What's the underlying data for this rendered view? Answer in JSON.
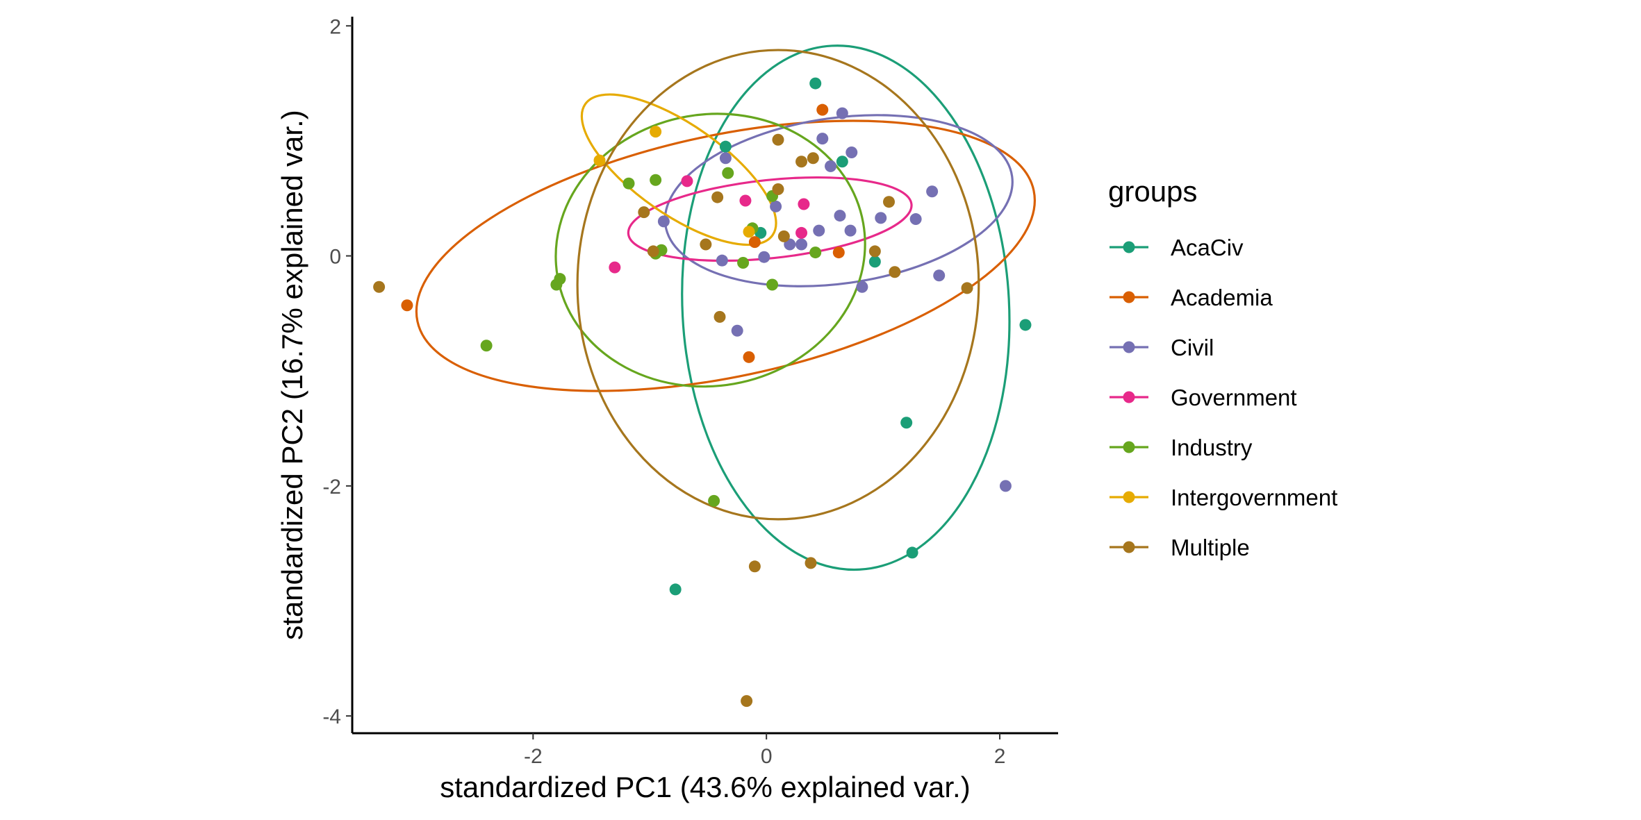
{
  "chart_data": {
    "type": "scatter",
    "xlabel": "standardized PC1 (43.6% explained var.)",
    "ylabel": "standardized PC2 (16.7% explained var.)",
    "xlim": [
      -3.55,
      2.5
    ],
    "ylim": [
      -4.15,
      2.08
    ],
    "xticks": [
      -2,
      0,
      2
    ],
    "yticks": [
      2,
      0,
      -2,
      -4
    ],
    "grid": false,
    "legend": {
      "title": "groups",
      "position": "right"
    },
    "series": [
      {
        "name": "AcaCiv",
        "color": "#1b9e77",
        "points": [
          [
            -0.78,
            -2.9
          ],
          [
            -0.35,
            0.95
          ],
          [
            0.42,
            1.5
          ],
          [
            0.65,
            0.82
          ],
          [
            0.93,
            -0.05
          ],
          [
            1.2,
            -1.45
          ],
          [
            1.25,
            -2.58
          ],
          [
            2.22,
            -0.6
          ],
          [
            -0.05,
            0.2
          ]
        ],
        "ellipse": {
          "cx": 0.68,
          "cy": -0.45,
          "rx": 1.4,
          "ry": 2.28,
          "angle": 3
        }
      },
      {
        "name": "Academia",
        "color": "#d95f02",
        "points": [
          [
            -3.08,
            -0.43
          ],
          [
            -0.15,
            -0.88
          ],
          [
            -0.1,
            0.12
          ],
          [
            0.48,
            1.27
          ],
          [
            0.62,
            0.03
          ]
        ],
        "ellipse": {
          "cx": -0.35,
          "cy": 0.0,
          "rx": 2.7,
          "ry": 1.05,
          "angle": 12
        }
      },
      {
        "name": "Civil",
        "color": "#7570b3",
        "points": [
          [
            -0.88,
            0.3
          ],
          [
            -0.35,
            0.85
          ],
          [
            -0.38,
            -0.04
          ],
          [
            -0.25,
            -0.65
          ],
          [
            -0.02,
            -0.01
          ],
          [
            0.08,
            0.43
          ],
          [
            0.2,
            0.1
          ],
          [
            0.3,
            0.1
          ],
          [
            0.45,
            0.22
          ],
          [
            0.48,
            1.02
          ],
          [
            0.55,
            0.78
          ],
          [
            0.63,
            0.35
          ],
          [
            0.65,
            1.24
          ],
          [
            0.72,
            0.22
          ],
          [
            0.73,
            0.9
          ],
          [
            0.82,
            -0.27
          ],
          [
            0.98,
            0.33
          ],
          [
            1.28,
            0.32
          ],
          [
            1.42,
            0.56
          ],
          [
            1.48,
            -0.17
          ],
          [
            2.05,
            -2.0
          ]
        ],
        "ellipse": {
          "cx": 0.62,
          "cy": 0.48,
          "rx": 1.5,
          "ry": 0.72,
          "angle": 8
        }
      },
      {
        "name": "Government",
        "color": "#e7298a",
        "points": [
          [
            -1.3,
            -0.1
          ],
          [
            -0.68,
            0.65
          ],
          [
            -0.18,
            0.48
          ],
          [
            0.3,
            0.2
          ],
          [
            0.32,
            0.45
          ]
        ],
        "ellipse": {
          "cx": 0.03,
          "cy": 0.32,
          "rx": 1.22,
          "ry": 0.34,
          "angle": 6
        }
      },
      {
        "name": "Industry",
        "color": "#66a61e",
        "points": [
          [
            -2.4,
            -0.78
          ],
          [
            -1.8,
            -0.25
          ],
          [
            -1.77,
            -0.2
          ],
          [
            -1.18,
            0.63
          ],
          [
            -0.95,
            0.66
          ],
          [
            -0.95,
            0.02
          ],
          [
            -0.9,
            0.05
          ],
          [
            -0.33,
            0.72
          ],
          [
            -0.2,
            -0.06
          ],
          [
            -0.12,
            0.24
          ],
          [
            0.05,
            -0.25
          ],
          [
            0.05,
            0.52
          ],
          [
            0.42,
            0.03
          ],
          [
            -0.45,
            -2.13
          ]
        ],
        "ellipse": {
          "cx": -0.48,
          "cy": 0.05,
          "rx": 1.33,
          "ry": 1.18,
          "angle": 10
        }
      },
      {
        "name": "Intergovernment",
        "color": "#e6ab02",
        "points": [
          [
            -1.43,
            0.83
          ],
          [
            -0.95,
            1.08
          ],
          [
            -0.15,
            0.21
          ]
        ],
        "ellipse": {
          "cx": -0.75,
          "cy": 0.75,
          "rx": 0.98,
          "ry": 0.39,
          "angle": -35
        }
      },
      {
        "name": "Multiple",
        "color": "#a6761d",
        "points": [
          [
            -3.32,
            -0.27
          ],
          [
            -1.05,
            0.38
          ],
          [
            -0.97,
            0.04
          ],
          [
            -0.52,
            0.1
          ],
          [
            -0.42,
            0.51
          ],
          [
            -0.4,
            -0.53
          ],
          [
            -0.17,
            -3.87
          ],
          [
            -0.1,
            -2.7
          ],
          [
            0.1,
            0.58
          ],
          [
            0.1,
            1.01
          ],
          [
            0.15,
            0.17
          ],
          [
            0.3,
            0.82
          ],
          [
            0.38,
            -2.67
          ],
          [
            0.4,
            0.85
          ],
          [
            0.93,
            0.04
          ],
          [
            1.05,
            0.47
          ],
          [
            1.1,
            -0.14
          ],
          [
            1.72,
            -0.28
          ]
        ],
        "ellipse": {
          "cx": 0.1,
          "cy": -0.25,
          "rx": 1.72,
          "ry": 2.04,
          "angle": 0
        }
      }
    ]
  }
}
